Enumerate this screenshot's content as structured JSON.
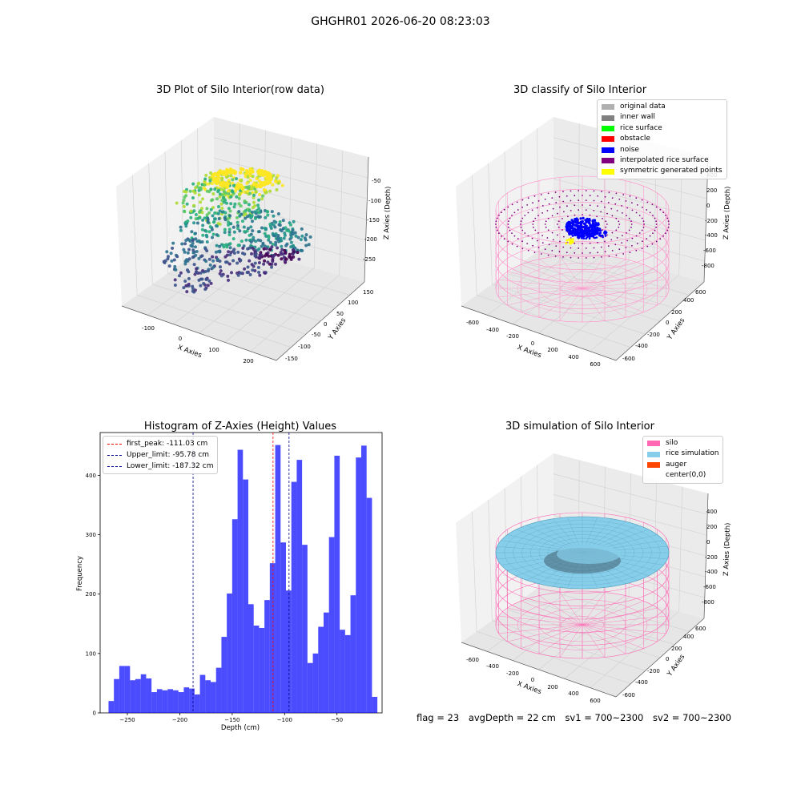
{
  "suptitle": "GHGHR01 2026-06-20 08:23:03",
  "panels": {
    "raw": {
      "title": "3D Plot of Silo Interior(row data)",
      "xlabel": "X Axies",
      "ylabel": "Y Axies",
      "zlabel": "Z Axies (Depth)",
      "xticks": [
        "-100",
        "0",
        "100",
        "200"
      ],
      "yticks": [
        "150",
        "100",
        "50",
        "0",
        "-50",
        "-100",
        "-150"
      ],
      "zticks": [
        "-50",
        "-100",
        "-150",
        "-200",
        "-250"
      ]
    },
    "classify": {
      "title": "3D classify of Silo Interior",
      "xlabel": "X Axies",
      "ylabel": "Y Axies",
      "zlabel": "Z Axies (Depth)",
      "xticks": [
        "-600",
        "-400",
        "-200",
        "0",
        "200",
        "400",
        "600"
      ],
      "yticks": [
        "600",
        "400",
        "200",
        "0",
        "-200",
        "-400",
        "-600"
      ],
      "zticks": [
        "400",
        "200",
        "0",
        "-200",
        "-400",
        "-600",
        "-800"
      ],
      "legend": [
        {
          "label": "original data",
          "color": "#b0b0b0"
        },
        {
          "label": "inner wall",
          "color": "#808080"
        },
        {
          "label": "rice surface",
          "color": "#00ff00"
        },
        {
          "label": "obstacle",
          "color": "#ff0000"
        },
        {
          "label": "noise",
          "color": "#0000ff"
        },
        {
          "label": "interpolated rice surface",
          "color": "#800080"
        },
        {
          "label": "symmetric generated points",
          "color": "#ffff00"
        }
      ]
    },
    "simulation": {
      "title": "3D simulation of Silo Interior",
      "xlabel": "X Axies",
      "ylabel": "Y Axies",
      "zlabel": "Z Axies (Depth)",
      "xticks": [
        "-600",
        "-400",
        "-200",
        "0",
        "200",
        "400",
        "600"
      ],
      "yticks": [
        "600",
        "400",
        "200",
        "0",
        "-200",
        "-400",
        "-600"
      ],
      "zticks": [
        "400",
        "200",
        "0",
        "-200",
        "-400",
        "-600",
        "-800"
      ],
      "legend": [
        {
          "label": "silo",
          "color": "#ff69b4"
        },
        {
          "label": "rice simulation",
          "color": "#87ceeb"
        },
        {
          "label": "auger",
          "color": "#ff4500"
        },
        {
          "label": "center(0,0)",
          "color": "#ffffff"
        }
      ]
    }
  },
  "chart_data": {
    "type": "bar",
    "title": "Histogram of Z-Axies (Height) Values",
    "xlabel": "Depth (cm)",
    "ylabel": "Frequency",
    "xlim": [
      -276,
      -7
    ],
    "ylim": [
      0,
      472
    ],
    "bin_start": -268,
    "bin_width": 5.13,
    "values": [
      20,
      57,
      79,
      79,
      55,
      57,
      65,
      58,
      35,
      40,
      38,
      40,
      38,
      35,
      43,
      41,
      31,
      64,
      55,
      52,
      76,
      128,
      201,
      326,
      443,
      393,
      183,
      147,
      143,
      190,
      252,
      451,
      287,
      206,
      389,
      426,
      283,
      84,
      100,
      145,
      169,
      296,
      433,
      140,
      131,
      198,
      430,
      450,
      362,
      27
    ],
    "color": "#0000ff",
    "xticks": [
      -250,
      -200,
      -150,
      -100,
      -50
    ],
    "yticks": [
      0,
      100,
      200,
      300,
      400
    ],
    "lines": [
      {
        "label": "first_peak: -111.03 cm",
        "x": -111.03,
        "color": "#ff0000"
      },
      {
        "label": "Upper_limit: -95.78 cm",
        "x": -95.78,
        "color": "#00008b"
      },
      {
        "label": "Lower_limit: -187.32 cm",
        "x": -187.32,
        "color": "#00008b"
      }
    ]
  },
  "footer": {
    "flag": "flag = 23",
    "avg": "avgDepth = 22 cm",
    "sv1": "sv1 = 700~2300",
    "sv2": "sv2 = 700~2300"
  }
}
